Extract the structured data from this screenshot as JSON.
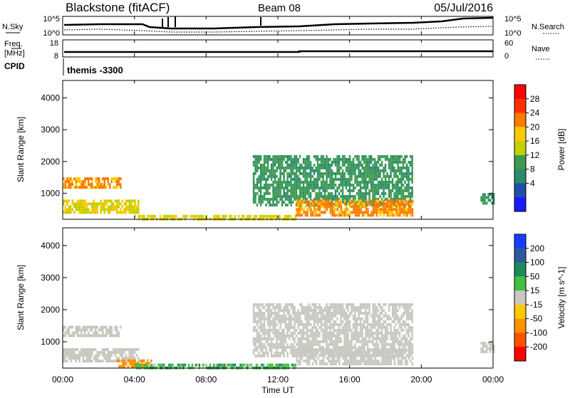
{
  "header": {
    "station": "Blackstone (fitACF)",
    "beam": "Beam 08",
    "date": "05/Jul/2016"
  },
  "noise_panel": {
    "left_label": "N.Sky",
    "right_label": "N.Search",
    "left_ticks": [
      "10^5",
      "10^0"
    ],
    "right_ticks": [
      "10^5",
      "10^0"
    ]
  },
  "freq_panel": {
    "left_label_1": "Freq.",
    "left_label_2": "[MHz]",
    "right_label": "Nave",
    "left_ticks": [
      "18",
      "8"
    ],
    "right_ticks": [
      "60",
      "0"
    ]
  },
  "cpid": {
    "label": "CPID",
    "value": "themis -3300"
  },
  "x_axis": {
    "label": "Time UT",
    "ticks": [
      "00:00",
      "04:00",
      "08:00",
      "12:00",
      "16:00",
      "20:00",
      "00:00"
    ],
    "tick_hours": [
      0,
      4,
      8,
      12,
      16,
      20,
      24
    ]
  },
  "y_axis": {
    "label": "Slant Range [km]",
    "ticks": [
      "1000",
      "2000",
      "3000",
      "4000"
    ],
    "tick_values": [
      1000,
      2000,
      3000,
      4000
    ],
    "range": [
      180,
      4550
    ]
  },
  "power_colorbar": {
    "label": "Power [dB]",
    "ticks": [
      "28",
      "24",
      "20",
      "16",
      "12",
      "8",
      "4"
    ],
    "colors": [
      "#ff0000",
      "#ff3000",
      "#ff7a00",
      "#ffc800",
      "#c4d000",
      "#3c9a52",
      "#2a8a6a",
      "#1f4fa8",
      "#1a1aff"
    ]
  },
  "velocity_colorbar": {
    "label": "Velocity [m s^-1]",
    "ticks": [
      "200",
      "100",
      "50",
      "15",
      "-15",
      "-50",
      "-100",
      "-200"
    ],
    "colors": [
      "#1a3cff",
      "#2a5a9a",
      "#1f8a5a",
      "#40c040",
      "#c8c8c0",
      "#ffc800",
      "#ff9000",
      "#ff5000",
      "#ff0000"
    ]
  },
  "chart_data": [
    {
      "type": "heatmap",
      "panel": "power",
      "title": "Power [dB]",
      "xlabel": "Time UT",
      "ylabel": "Slant Range [km]",
      "xlim": [
        0,
        24
      ],
      "ylim": [
        180,
        4550
      ],
      "unit": "dB",
      "clim": [
        0,
        30
      ],
      "regions": [
        {
          "x": [
            0,
            3.2
          ],
          "y": [
            1200,
            1500
          ],
          "value": 22
        },
        {
          "x": [
            0,
            4.2
          ],
          "y": [
            400,
            800
          ],
          "value": 16
        },
        {
          "x": [
            4.0,
            13.0
          ],
          "y": [
            200,
            320
          ],
          "value": 16
        },
        {
          "x": [
            10.6,
            19.5
          ],
          "y": [
            600,
            2200
          ],
          "value": 10
        },
        {
          "x": [
            13.0,
            19.5
          ],
          "y": [
            350,
            800
          ],
          "value": 22
        },
        {
          "x": [
            23.3,
            24
          ],
          "y": [
            700,
            1000
          ],
          "value": 10
        }
      ]
    },
    {
      "type": "heatmap",
      "panel": "velocity",
      "title": "Velocity [m s^-1]",
      "xlabel": "Time UT",
      "ylabel": "Slant Range [km]",
      "xlim": [
        0,
        24
      ],
      "ylim": [
        180,
        4550
      ],
      "unit": "m s^-1",
      "clim": [
        -200,
        200
      ],
      "regions": [
        {
          "x": [
            0,
            3.2
          ],
          "y": [
            1200,
            1500
          ],
          "value": 0
        },
        {
          "x": [
            0,
            4.2
          ],
          "y": [
            400,
            800
          ],
          "value": 0
        },
        {
          "x": [
            3.0,
            5.0
          ],
          "y": [
            200,
            450
          ],
          "value": -60
        },
        {
          "x": [
            4.0,
            13.0
          ],
          "y": [
            200,
            320
          ],
          "value": 20
        },
        {
          "x": [
            10.6,
            19.5
          ],
          "y": [
            600,
            2200
          ],
          "value": 0
        },
        {
          "x": [
            13.0,
            19.5
          ],
          "y": [
            350,
            800
          ],
          "value": 0
        },
        {
          "x": [
            23.3,
            24
          ],
          "y": [
            700,
            1000
          ],
          "value": 0
        }
      ]
    }
  ]
}
